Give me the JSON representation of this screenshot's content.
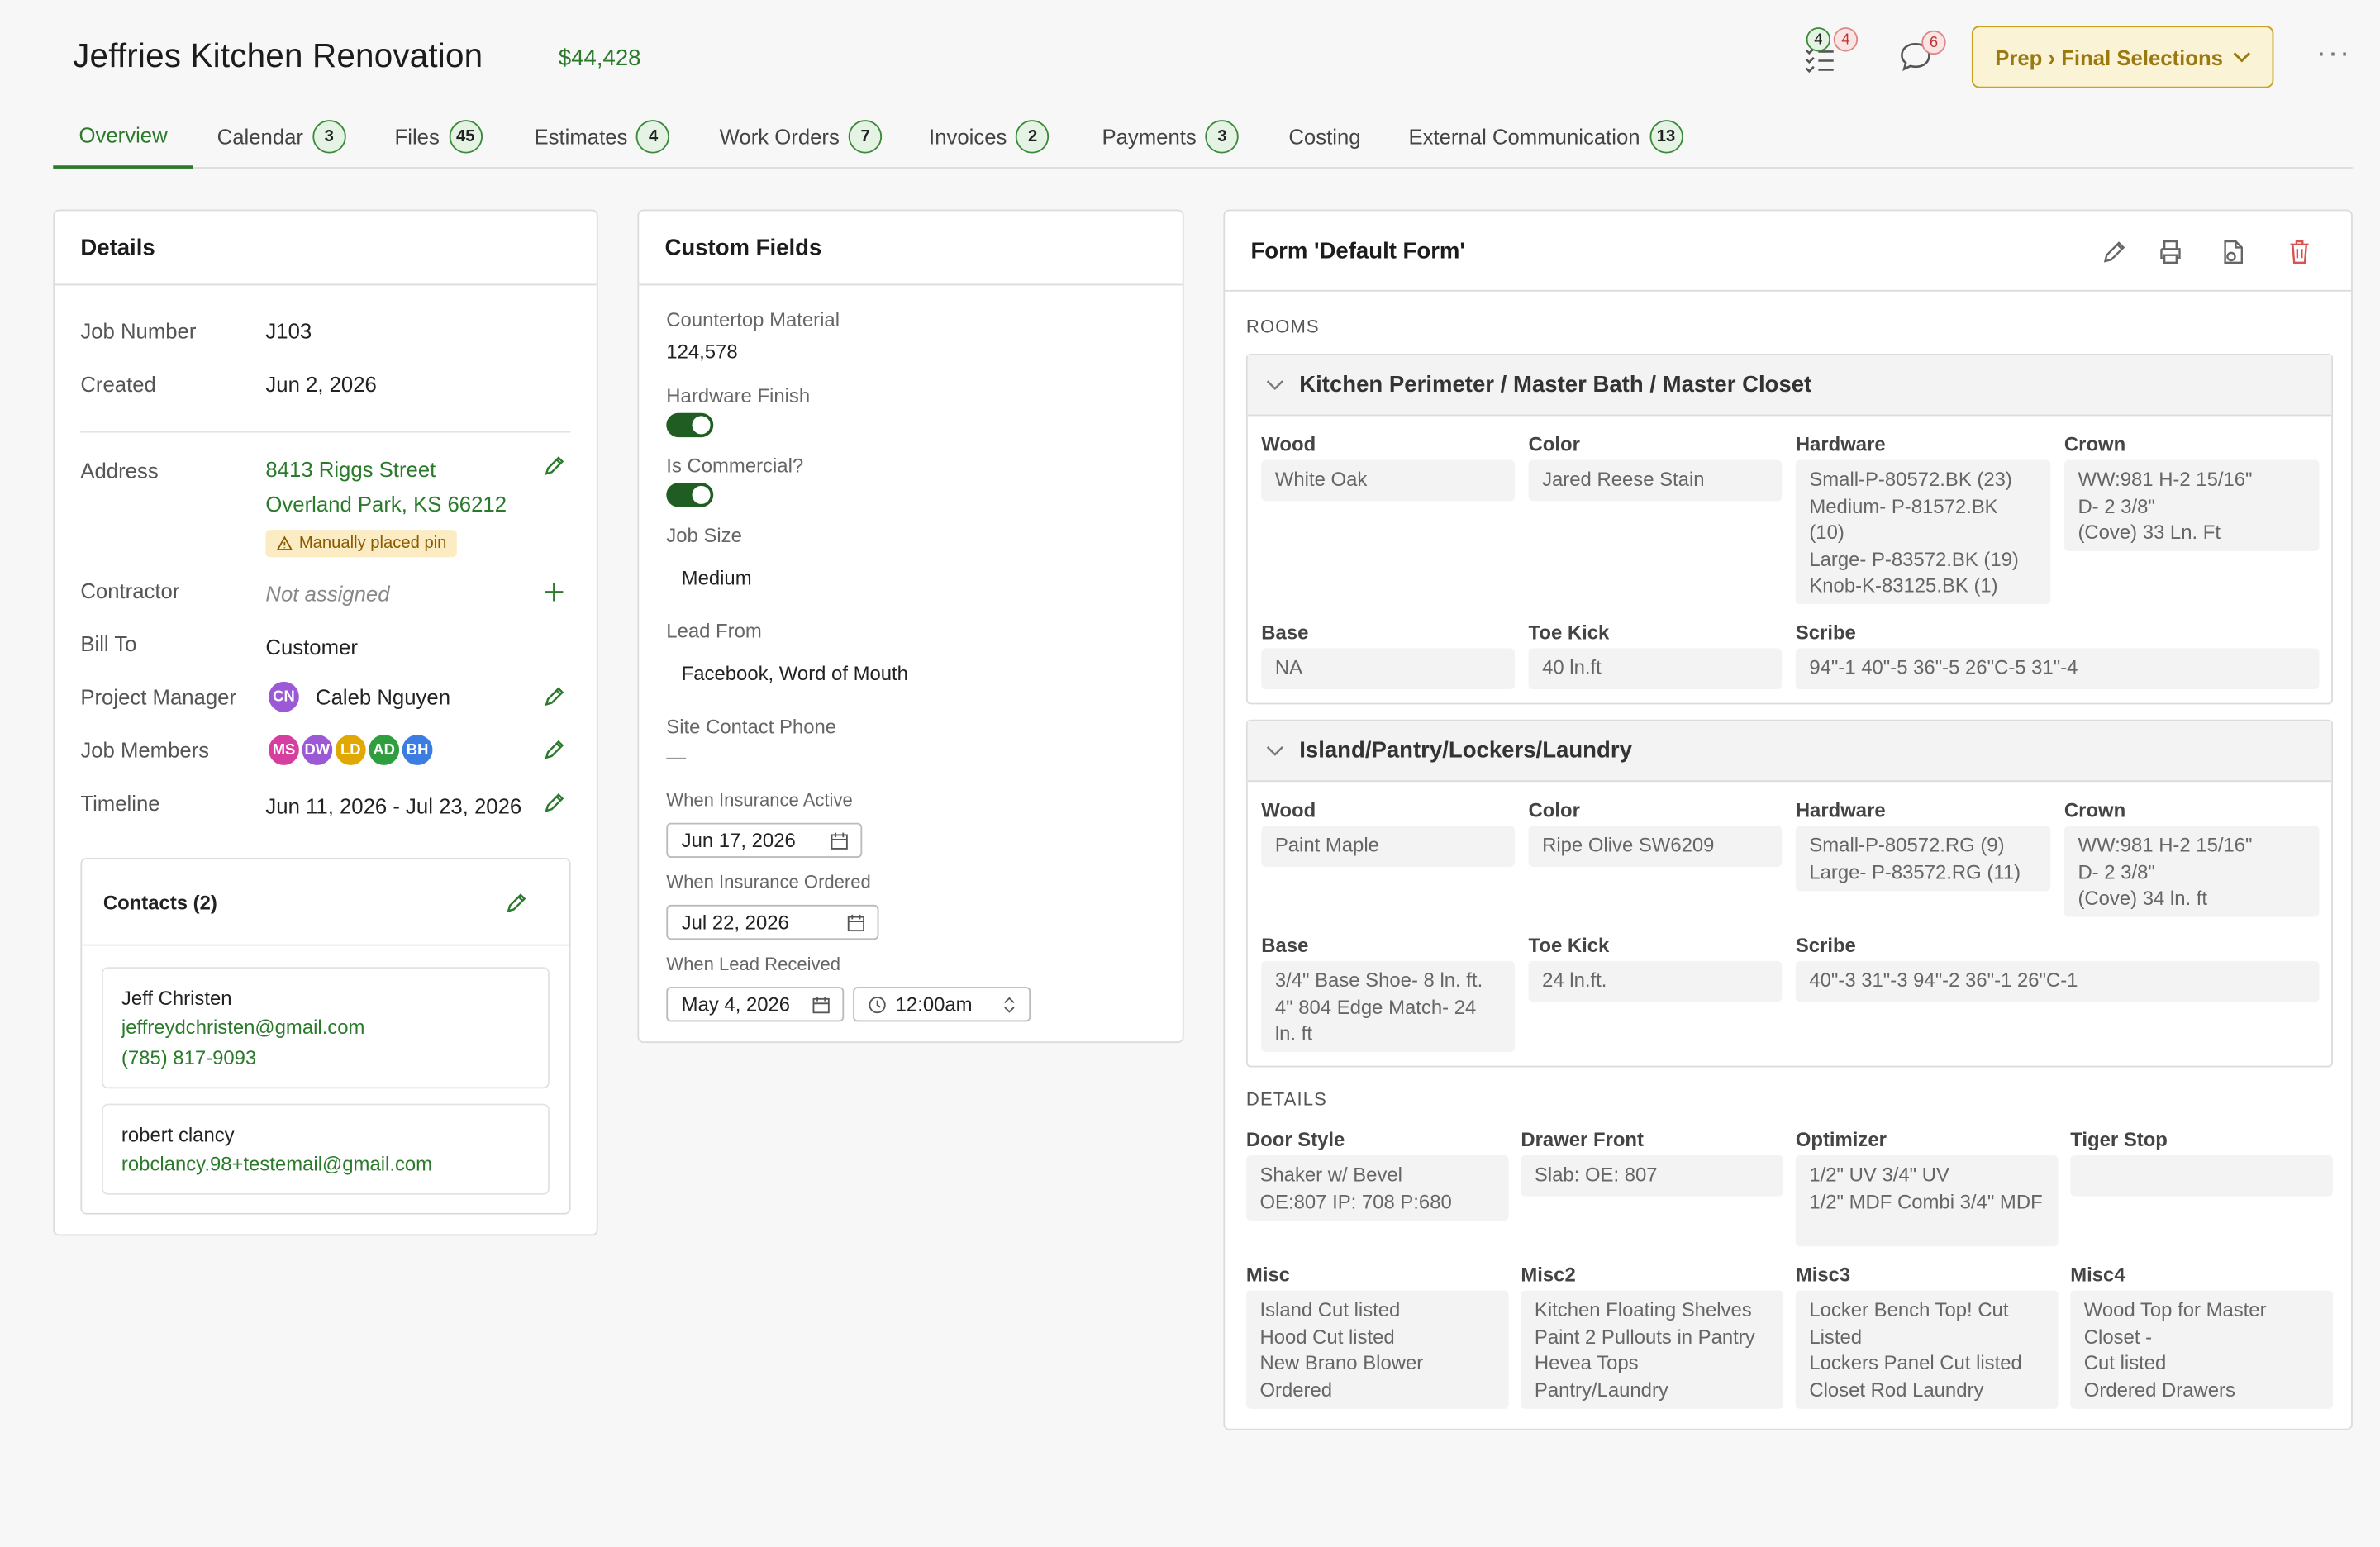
{
  "header": {
    "title": "Jeffries Kitchen Renovation",
    "amount": "$44,428",
    "tasks_done": "4",
    "tasks_open": "4",
    "messages_count": "6",
    "stage_button": "Prep › Final Selections",
    "colors": {
      "accent": "#2b7a2b",
      "stage_bg": "#fbf3d5",
      "stage_border": "#c9a227",
      "danger": "#d9534f"
    }
  },
  "tabs": [
    {
      "label": "Overview",
      "count": null
    },
    {
      "label": "Calendar",
      "count": "3"
    },
    {
      "label": "Files",
      "count": "45"
    },
    {
      "label": "Estimates",
      "count": "4"
    },
    {
      "label": "Work Orders",
      "count": "7"
    },
    {
      "label": "Invoices",
      "count": "2"
    },
    {
      "label": "Payments",
      "count": "3"
    },
    {
      "label": "Costing",
      "count": null
    },
    {
      "label": "External Communication",
      "count": "13"
    }
  ],
  "details": {
    "title": "Details",
    "job_number_label": "Job Number",
    "job_number": "J103",
    "created_label": "Created",
    "created": "Jun 2, 2026",
    "address_label": "Address",
    "address_line1": "8413 Riggs Street",
    "address_line2": "Overland Park, KS 66212",
    "pin_note": "Manually placed pin",
    "contractor_label": "Contractor",
    "contractor": "Not assigned",
    "bill_to_label": "Bill To",
    "bill_to": "Customer",
    "pm_label": "Project Manager",
    "pm_initials": "CN",
    "pm_name": "Caleb Nguyen",
    "members_label": "Job Members",
    "members": [
      {
        "initials": "MS",
        "color": "#d63fa0"
      },
      {
        "initials": "DW",
        "color": "#9b59d6"
      },
      {
        "initials": "LD",
        "color": "#e0a800"
      },
      {
        "initials": "AD",
        "color": "#2e9e3e"
      },
      {
        "initials": "BH",
        "color": "#3b7de0"
      }
    ],
    "timeline_label": "Timeline",
    "timeline": "Jun 11, 2026 - Jul 23, 2026",
    "contacts_title": "Contacts (2)",
    "contacts": [
      {
        "name": "Jeff Christen",
        "email": "jeffreydchristen@gmail.com",
        "phone": "(785) 817-9093"
      },
      {
        "name": "robert clancy",
        "email": "robclancy.98+testemail@gmail.com"
      }
    ]
  },
  "custom_fields": {
    "title": "Custom Fields",
    "countertop_label": "Countertop Material",
    "countertop": "124,578",
    "hardware_finish_label": "Hardware Finish",
    "commercial_label": "Is Commercial?",
    "job_size_label": "Job Size",
    "job_size": "Medium",
    "lead_from_label": "Lead From",
    "lead_from": "Facebook, Word of Mouth",
    "site_phone_label": "Site Contact Phone",
    "site_phone": "—",
    "ins_active_label": "When Insurance Active",
    "ins_active": "Jun 17, 2026",
    "ins_ordered_label": "When Insurance Ordered",
    "ins_ordered": "Jul 22, 2026",
    "lead_received_label": "When Lead Received",
    "lead_received_date": "May 4, 2026",
    "lead_received_time": "12:00am"
  },
  "form": {
    "title": "Form 'Default Form'",
    "rooms_label": "ROOMS",
    "details_label": "DETAILS",
    "room1": {
      "name": "Kitchen Perimeter / Master Bath / Master Closet",
      "wood_label": "Wood",
      "wood": "White Oak",
      "color_label": "Color",
      "color": "Jared Reese Stain",
      "hardware_label": "Hardware",
      "hardware": "Small-P-80572.BK (23)\nMedium- P-81572.BK (10)\nLarge- P-83572.BK (19)\nKnob-K-83125.BK (1)",
      "crown_label": "Crown",
      "crown": "WW:981    H-2 15/16\"\nD- 2 3/8\"\n(Cove) 33 Ln. Ft",
      "base_label": "Base",
      "base": "NA",
      "toe_label": "Toe Kick",
      "toe": "40 ln.ft",
      "scribe_label": "Scribe",
      "scribe": "94\"-1   40\"-5   36\"-5   26\"C-5   31\"-4"
    },
    "room2": {
      "name": "Island/Pantry/Lockers/Laundry",
      "wood_label": "Wood",
      "wood": "Paint Maple",
      "color_label": "Color",
      "color": "Ripe Olive SW6209",
      "hardware_label": "Hardware",
      "hardware": "Small-P-80572.RG (9)\nLarge- P-83572.RG (11)",
      "crown_label": "Crown",
      "crown": "WW:981    H-2 15/16\"\nD- 2 3/8\"\n(Cove) 34 ln. ft",
      "base_label": "Base",
      "base": "3/4\" Base Shoe- 8 ln. ft.\n4\" 804 Edge Match- 24 ln. ft",
      "toe_label": "Toe Kick",
      "toe": "24 ln.ft.",
      "scribe_label": "Scribe",
      "scribe": "40\"-3   31\"-3   94\"-2   36\"-1   26\"C-1"
    },
    "details": {
      "door_label": "Door Style",
      "door": "Shaker w/ Bevel\nOE:807   IP: 708   P:680",
      "drawer_label": "Drawer Front",
      "drawer": "Slab: OE: 807",
      "optimizer_label": "Optimizer",
      "optimizer": "1/2\" UV   3/4\" UV\n1/2\" MDF Combi   3/4\" MDF",
      "tiger_label": "Tiger Stop",
      "tiger": "",
      "misc_label": "Misc",
      "misc": "Island Cut listed\nHood Cut listed\nNew Brano Blower Ordered",
      "misc2_label": "Misc2",
      "misc2": "Kitchen Floating Shelves\nPaint 2 Pullouts in Pantry\nHevea Tops\nPantry/Laundry",
      "misc3_label": "Misc3",
      "misc3": "Locker Bench Top! Cut Listed\nLockers Panel Cut listed\nCloset Rod Laundry",
      "misc4_label": "Misc4",
      "misc4": "Wood Top for Master Closet -\nCut listed\nOrdered Drawers"
    }
  }
}
